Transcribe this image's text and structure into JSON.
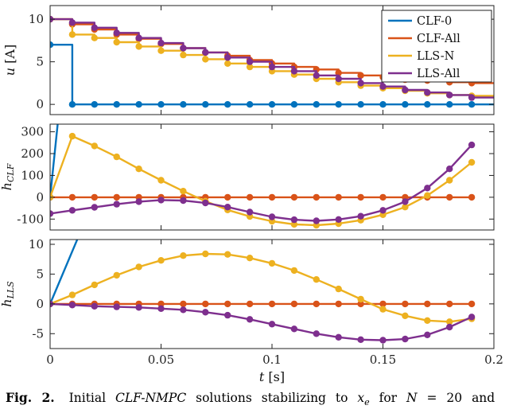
{
  "figure": {
    "xlabel_var": "t",
    "xlabel_unit": "[s]",
    "xticks": [
      0,
      0.05,
      0.1,
      0.15,
      0.2
    ],
    "xtick_labels": [
      "0",
      "0.05",
      "0.1",
      "0.15",
      "0.2"
    ],
    "legend": {
      "position": "top-right",
      "entries": [
        {
          "label": "CLF-0",
          "color": "#0072BD"
        },
        {
          "label": "CLF-All",
          "color": "#D95319"
        },
        {
          "label": "LLS-N",
          "color": "#EDB120"
        },
        {
          "label": "LLS-All",
          "color": "#7E2F8E"
        }
      ]
    }
  },
  "chart_data": [
    {
      "name": "u",
      "type": "line",
      "style": "stairs",
      "ylabel": {
        "main": "u",
        "sub": "",
        "unit": " [A]"
      },
      "ylim": [
        -1.2,
        11.6
      ],
      "yticks": [
        0,
        5,
        10
      ],
      "ytick_labels": [
        "0",
        "5",
        "10"
      ],
      "xlim": [
        0,
        0.2
      ],
      "x_start": 0,
      "x_step": 0.01,
      "series": [
        {
          "name": "CLF-0",
          "color": "#0072BD",
          "values": [
            7,
            0,
            0,
            0,
            0,
            0,
            0,
            0,
            0,
            0,
            0,
            0,
            0,
            0,
            0,
            0,
            0,
            0,
            0,
            0
          ]
        },
        {
          "name": "CLF-All",
          "color": "#D95319",
          "values": [
            10,
            9.4,
            8.8,
            8.2,
            7.7,
            7.1,
            6.6,
            6.1,
            5.7,
            5.2,
            4.8,
            4.4,
            4.1,
            3.7,
            3.4,
            3.2,
            2.9,
            2.8,
            2.6,
            2.5
          ]
        },
        {
          "name": "LLS-N",
          "color": "#EDB120",
          "values": [
            10,
            8.2,
            7.8,
            7.3,
            6.8,
            6.3,
            5.8,
            5.3,
            4.8,
            4.4,
            3.9,
            3.5,
            3.0,
            2.6,
            2.2,
            1.9,
            1.6,
            1.3,
            1.1,
            1.0
          ]
        },
        {
          "name": "LLS-All",
          "color": "#7E2F8E",
          "values": [
            10,
            9.6,
            9.0,
            8.4,
            7.8,
            7.2,
            6.6,
            6.1,
            5.5,
            5.0,
            4.4,
            3.9,
            3.4,
            3.0,
            2.5,
            2.1,
            1.7,
            1.4,
            1.1,
            0.8
          ]
        }
      ]
    },
    {
      "name": "h-clf",
      "type": "line",
      "style": "line",
      "ylabel": {
        "main": "h",
        "sub": "CLF",
        "unit": ""
      },
      "ylim": [
        -150,
        335
      ],
      "yticks": [
        -100,
        0,
        100,
        200,
        300
      ],
      "ytick_labels": [
        "-100",
        "0",
        "100",
        "200",
        "300"
      ],
      "xlim": [
        0,
        0.2
      ],
      "x_start": 0,
      "x_step": 0.01,
      "series": [
        {
          "name": "CLF-0",
          "color": "#0072BD",
          "x": [
            0,
            0.0035
          ],
          "values": [
            0,
            345
          ],
          "marker_points": [
            [
              0,
              0
            ]
          ]
        },
        {
          "name": "CLF-All",
          "color": "#D95319",
          "values": [
            0,
            0,
            0,
            0,
            0,
            0,
            0,
            0,
            0,
            0,
            0,
            0,
            0,
            0,
            0,
            0,
            0,
            0,
            0,
            0
          ]
        },
        {
          "name": "LLS-N",
          "color": "#EDB120",
          "values": [
            0,
            280,
            235,
            185,
            130,
            78,
            28,
            -18,
            -58,
            -88,
            -110,
            -124,
            -128,
            -121,
            -105,
            -80,
            -45,
            8,
            78,
            160
          ]
        },
        {
          "name": "LLS-All",
          "color": "#7E2F8E",
          "values": [
            -75,
            -60,
            -46,
            -32,
            -20,
            -13,
            -15,
            -26,
            -45,
            -68,
            -90,
            -103,
            -108,
            -102,
            -87,
            -60,
            -20,
            42,
            130,
            240
          ]
        }
      ]
    },
    {
      "name": "h-lls",
      "type": "line",
      "style": "line",
      "ylabel": {
        "main": "h",
        "sub": "LLS",
        "unit": ""
      },
      "ylim": [
        -7.5,
        10.8
      ],
      "yticks": [
        -5,
        0,
        5,
        10
      ],
      "ytick_labels": [
        "-5",
        "0",
        "5",
        "10"
      ],
      "xlim": [
        0,
        0.2
      ],
      "x_start": 0,
      "x_step": 0.01,
      "series": [
        {
          "name": "CLF-0",
          "color": "#0072BD",
          "x": [
            0,
            0.013
          ],
          "values": [
            0,
            11.5
          ],
          "marker_points": [
            [
              0,
              0
            ]
          ]
        },
        {
          "name": "CLF-All",
          "color": "#D95319",
          "values": [
            0,
            0,
            0,
            0,
            0,
            0,
            0,
            0,
            0,
            0,
            0,
            0,
            0,
            0,
            0,
            0,
            0,
            0,
            0,
            0
          ]
        },
        {
          "name": "LLS-N",
          "color": "#EDB120",
          "values": [
            0,
            1.5,
            3.2,
            4.8,
            6.2,
            7.3,
            8.1,
            8.4,
            8.3,
            7.7,
            6.8,
            5.6,
            4.1,
            2.5,
            0.8,
            -0.9,
            -2.0,
            -2.8,
            -3.0,
            -2.5
          ]
        },
        {
          "name": "LLS-All",
          "color": "#7E2F8E",
          "values": [
            0,
            -0.2,
            -0.4,
            -0.5,
            -0.6,
            -0.8,
            -1.0,
            -1.4,
            -1.9,
            -2.6,
            -3.4,
            -4.2,
            -5.0,
            -5.6,
            -6.0,
            -6.1,
            -5.9,
            -5.2,
            -3.9,
            -2.2
          ]
        }
      ]
    }
  ],
  "caption": {
    "segments": [
      {
        "text": "Fig. 2.",
        "bold": true
      },
      {
        "text": " Initial "
      },
      {
        "text": "CLF-NMPC",
        "italic": true
      },
      {
        "text": " solutions stabilizing to "
      },
      {
        "text": "x",
        "italic": true
      },
      {
        "text": "e",
        "italic": true,
        "sub": true
      },
      {
        "text": " for "
      },
      {
        "text": "N",
        "italic": true
      },
      {
        "text": " = 20 and"
      }
    ]
  }
}
